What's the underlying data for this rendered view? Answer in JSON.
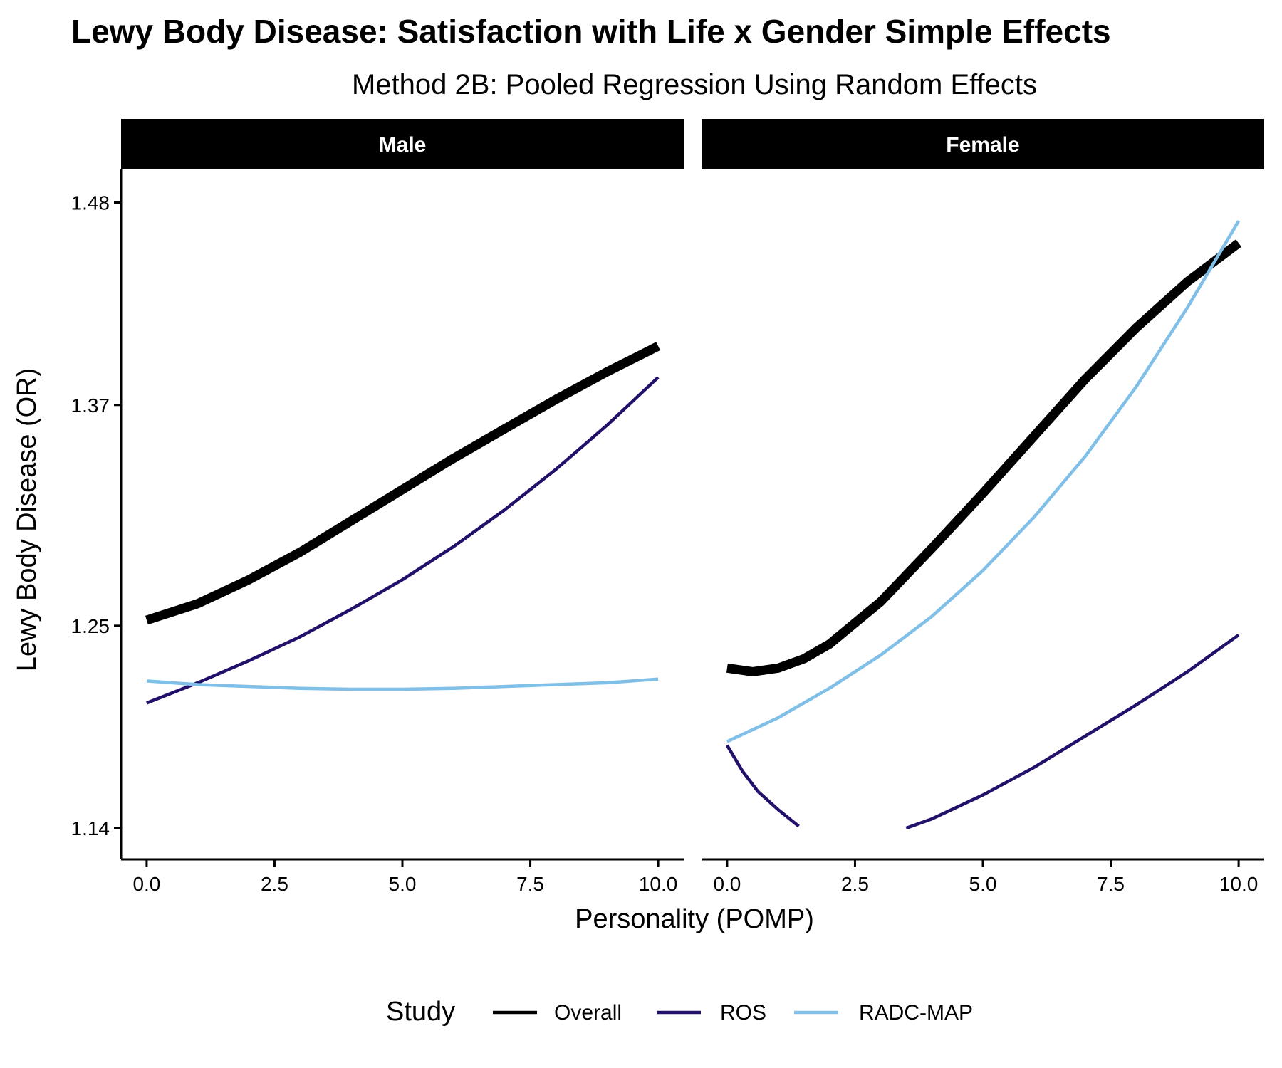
{
  "chart_data": {
    "type": "line",
    "title": "Lewy Body Disease: Satisfaction with Life x Gender Simple Effects",
    "subtitle": "Method 2B: Pooled Regression Using Random Effects",
    "xlabel": "Personality (POMP)",
    "ylabel": "Lewy Body Disease (OR)",
    "xlim": [
      -0.5,
      10.5
    ],
    "ylim": [
      1.123,
      1.498
    ],
    "x_ticks": [
      "0.0",
      "2.5",
      "5.0",
      "7.5",
      "10.0"
    ],
    "x_tick_values": [
      0,
      2.5,
      5,
      7.5,
      10
    ],
    "y_ticks": [
      "1.14",
      "1.25",
      "1.37",
      "1.48"
    ],
    "y_tick_values": [
      1.14,
      1.25,
      1.37,
      1.48
    ],
    "grid": false,
    "legend": {
      "title": "Study",
      "position": "bottom",
      "entries": [
        {
          "label": "Overall",
          "color": "#000000"
        },
        {
          "label": "ROS",
          "color": "#23106b"
        },
        {
          "label": "RADC-MAP",
          "color": "#7fbfe8"
        }
      ]
    },
    "panels": [
      {
        "label": "Male",
        "series": [
          {
            "name": "Overall",
            "color": "#000000",
            "width": "thick",
            "x": [
              0,
              1,
              2,
              3,
              4,
              5,
              6,
              7,
              8,
              9,
              10
            ],
            "y": [
              1.253,
              1.262,
              1.275,
              1.29,
              1.307,
              1.324,
              1.341,
              1.357,
              1.373,
              1.388,
              1.402
            ]
          },
          {
            "name": "ROS",
            "color": "#23106b",
            "width": "thin",
            "x": [
              0,
              1,
              2,
              3,
              4,
              5,
              6,
              7,
              8,
              9,
              10
            ],
            "y": [
              1.208,
              1.219,
              1.231,
              1.244,
              1.259,
              1.275,
              1.293,
              1.313,
              1.335,
              1.359,
              1.385
            ]
          },
          {
            "name": "RADC-MAP",
            "color": "#7fbfe8",
            "width": "thin",
            "x": [
              0,
              1,
              2,
              3,
              4,
              5,
              6,
              7,
              8,
              9,
              10
            ],
            "y": [
              1.22,
              1.218,
              1.217,
              1.216,
              1.2155,
              1.2155,
              1.216,
              1.217,
              1.218,
              1.219,
              1.221
            ]
          }
        ]
      },
      {
        "label": "Female",
        "series": [
          {
            "name": "Overall",
            "color": "#000000",
            "width": "thick",
            "x": [
              0,
              0.5,
              1,
              1.5,
              2,
              3,
              4,
              5,
              6,
              7,
              8,
              9,
              10
            ],
            "y": [
              1.227,
              1.225,
              1.227,
              1.232,
              1.24,
              1.263,
              1.292,
              1.322,
              1.353,
              1.384,
              1.412,
              1.437,
              1.458
            ]
          },
          {
            "name": "ROS",
            "color": "#23106b",
            "width": "thin",
            "x": [
              0,
              0.3,
              0.6,
              1,
              1.4,
              null,
              3.5,
              4,
              5,
              6,
              7,
              8,
              9,
              10
            ],
            "y": [
              1.185,
              1.171,
              1.16,
              1.15,
              1.141,
              null,
              1.14,
              1.145,
              1.158,
              1.173,
              1.19,
              1.207,
              1.225,
              1.245
            ]
          },
          {
            "name": "RADC-MAP",
            "color": "#7fbfe8",
            "width": "thin",
            "x": [
              0,
              1,
              2,
              3,
              4,
              5,
              6,
              7,
              8,
              9,
              10
            ],
            "y": [
              1.187,
              1.2,
              1.216,
              1.234,
              1.255,
              1.28,
              1.309,
              1.342,
              1.38,
              1.423,
              1.47
            ]
          }
        ]
      }
    ]
  }
}
